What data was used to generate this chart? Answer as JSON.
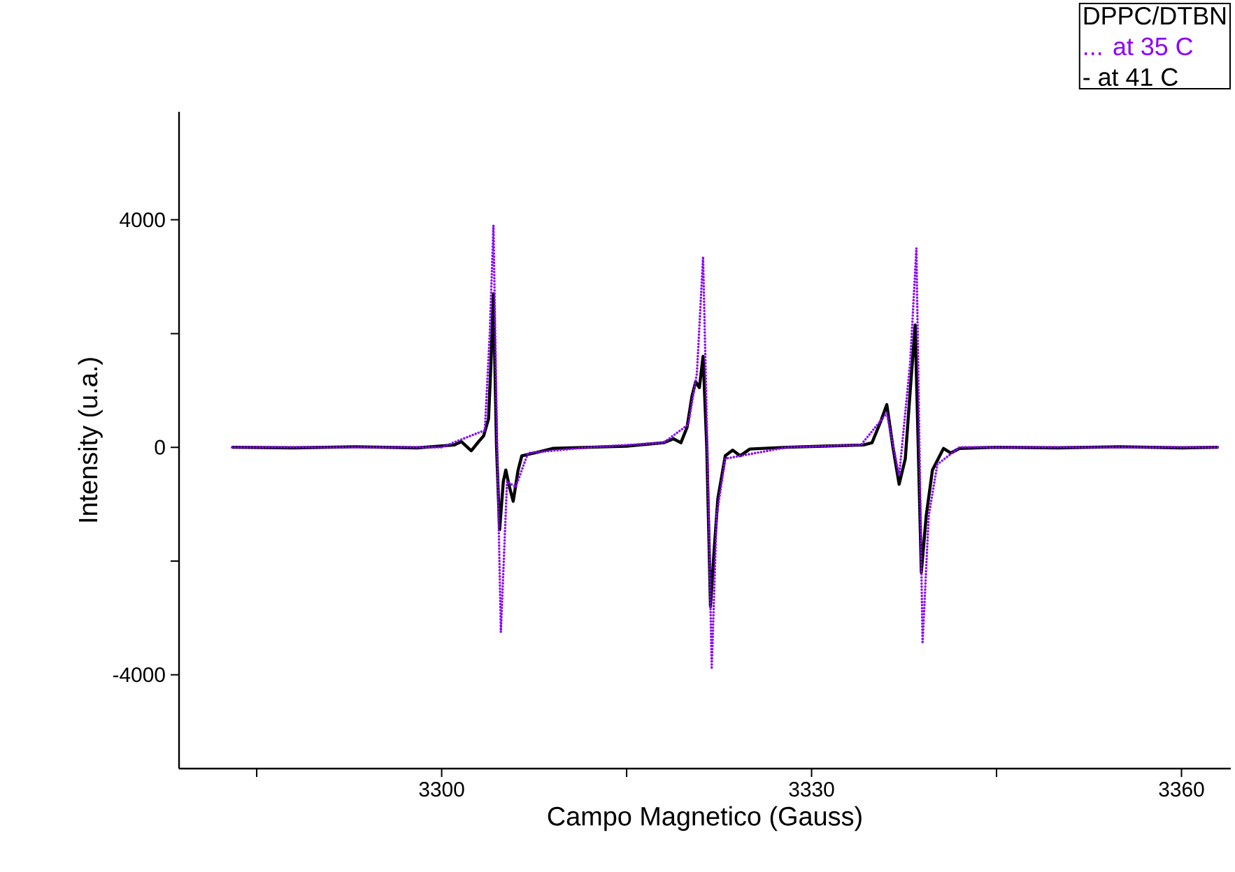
{
  "chart_data": {
    "type": "line",
    "xlabel": "Campo Magnetico (Gauss)",
    "ylabel": "Intensity (u.a.)",
    "legend_title": "DPPC/DTBN",
    "xlim": [
      3278.7,
      3364
    ],
    "ylim": [
      -5650,
      5900
    ],
    "xticks": [
      {
        "value": 3285,
        "label": null
      },
      3300,
      {
        "value": 3315,
        "label": null
      },
      3330,
      {
        "value": 3345,
        "label": null
      },
      3360
    ],
    "yticks": [
      -4000,
      {
        "value": -2000,
        "label": null
      },
      0,
      {
        "value": 2000,
        "label": null
      },
      4000
    ],
    "grid": false,
    "legend": "top right",
    "series": [
      {
        "name": "... at 35 C",
        "color": "#8b00ff",
        "line_style": "dotted",
        "x": [
          3283,
          3300,
          3303.5,
          3303.9,
          3304.2,
          3304.5,
          3304.8,
          3305.3,
          3306,
          3307,
          3312,
          3318,
          3320,
          3320.7,
          3321.2,
          3321.55,
          3321.9,
          3322.3,
          3323,
          3328,
          3334,
          3336.1,
          3337.1,
          3338,
          3338.5,
          3338.75,
          3339,
          3339.5,
          3340.2,
          3342,
          3363
        ],
        "values": [
          0,
          0,
          300,
          2000,
          3900,
          0,
          -3250,
          -600,
          -700,
          -100,
          0,
          80,
          400,
          1300,
          3350,
          0,
          -3900,
          -1200,
          -200,
          0,
          40,
          600,
          -500,
          1500,
          3500,
          0,
          -3450,
          -1200,
          -300,
          0,
          0
        ]
      },
      {
        "name": "- at 41 C",
        "color": "#000000",
        "line_style": "solid",
        "x": [
          3283,
          3288,
          3293,
          3298,
          3301,
          3301.6,
          3302.4,
          3303,
          3303.4,
          3303.8,
          3304.0,
          3304.2,
          3304.45,
          3304.7,
          3305.0,
          3305.2,
          3305.5,
          3305.8,
          3306.2,
          3306.5,
          3307.5,
          3309,
          3312,
          3315,
          3318,
          3318.8,
          3319.4,
          3319.9,
          3320.3,
          3320.6,
          3320.9,
          3321.2,
          3321.5,
          3321.8,
          3322.1,
          3322.4,
          3323,
          3323.6,
          3324.2,
          3325,
          3328,
          3331,
          3334.2,
          3334.9,
          3335.6,
          3336.1,
          3336.6,
          3337.1,
          3337.6,
          3338.0,
          3338.4,
          3338.65,
          3338.9,
          3339.3,
          3339.8,
          3340.7,
          3341.3,
          3342,
          3345,
          3350,
          3355,
          3360,
          3363
        ],
        "values": [
          0,
          -10,
          10,
          -10,
          40,
          100,
          -60,
          100,
          200,
          500,
          1500,
          2700,
          0,
          -1450,
          -600,
          -400,
          -700,
          -950,
          -400,
          -150,
          -100,
          -20,
          0,
          20,
          80,
          150,
          80,
          350,
          900,
          1150,
          1050,
          1600,
          0,
          -2800,
          -1800,
          -900,
          -150,
          -50,
          -150,
          -30,
          0,
          20,
          40,
          80,
          450,
          750,
          0,
          -650,
          -200,
          1000,
          2150,
          0,
          -2200,
          -1200,
          -400,
          -20,
          -100,
          -20,
          0,
          -10,
          10,
          -10,
          0
        ]
      }
    ]
  }
}
